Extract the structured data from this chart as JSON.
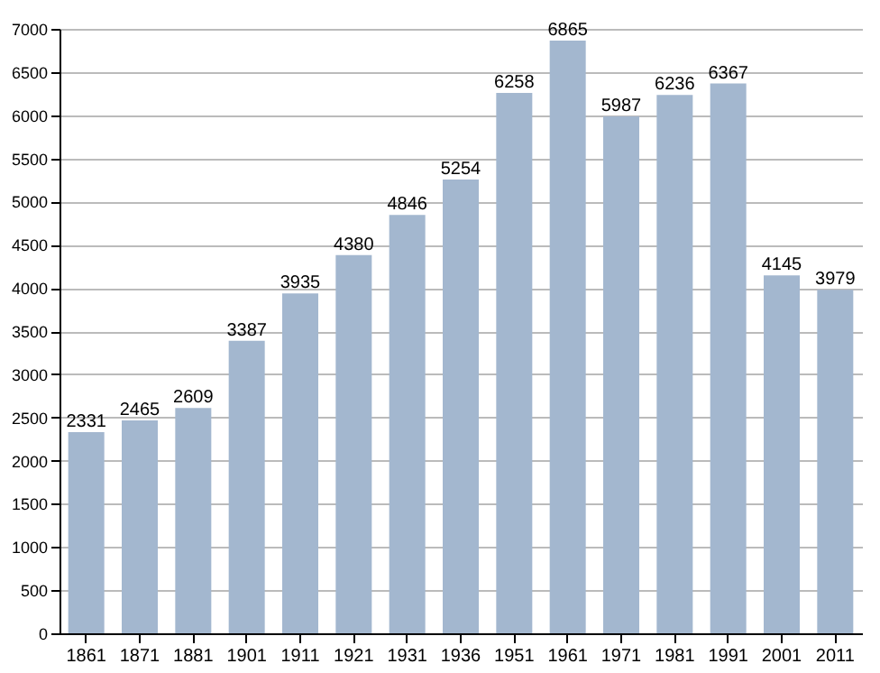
{
  "chart_data": {
    "type": "bar",
    "categories": [
      "1861",
      "1871",
      "1881",
      "1901",
      "1911",
      "1921",
      "1931",
      "1936",
      "1951",
      "1961",
      "1971",
      "1981",
      "1991",
      "2001",
      "2011"
    ],
    "values": [
      2331,
      2465,
      2609,
      3387,
      3935,
      4380,
      4846,
      5254,
      6258,
      6865,
      5987,
      6236,
      6367,
      4145,
      3979
    ],
    "color": "#a3b7cf",
    "ylim": [
      0,
      7000
    ],
    "yticks": [
      0,
      500,
      1000,
      1500,
      2000,
      2500,
      3000,
      3500,
      4000,
      4500,
      5000,
      5500,
      6000,
      6500,
      7000
    ],
    "grid": "y",
    "data_labels": true
  }
}
